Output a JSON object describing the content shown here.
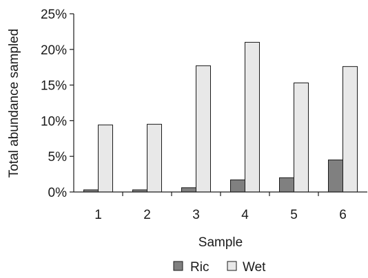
{
  "chart_data": {
    "type": "bar",
    "categories": [
      "1",
      "2",
      "3",
      "4",
      "5",
      "6"
    ],
    "series": [
      {
        "name": "Ric",
        "values": [
          0.3,
          0.3,
          0.6,
          1.7,
          2.0,
          4.5
        ]
      },
      {
        "name": "Wet",
        "values": [
          9.4,
          9.5,
          17.7,
          21.0,
          15.3,
          17.6
        ]
      }
    ],
    "series_colors": [
      "#808080",
      "#e8e8e8"
    ],
    "ylim": [
      0,
      25
    ],
    "yticks": [
      0,
      5,
      10,
      15,
      20,
      25
    ],
    "ytick_labels": [
      "0%",
      "5%",
      "10%",
      "15%",
      "20%",
      "25%"
    ],
    "ylabel": "Total abundance sampled",
    "xlabel": "Sample",
    "grid": false,
    "legend": "bottom"
  }
}
